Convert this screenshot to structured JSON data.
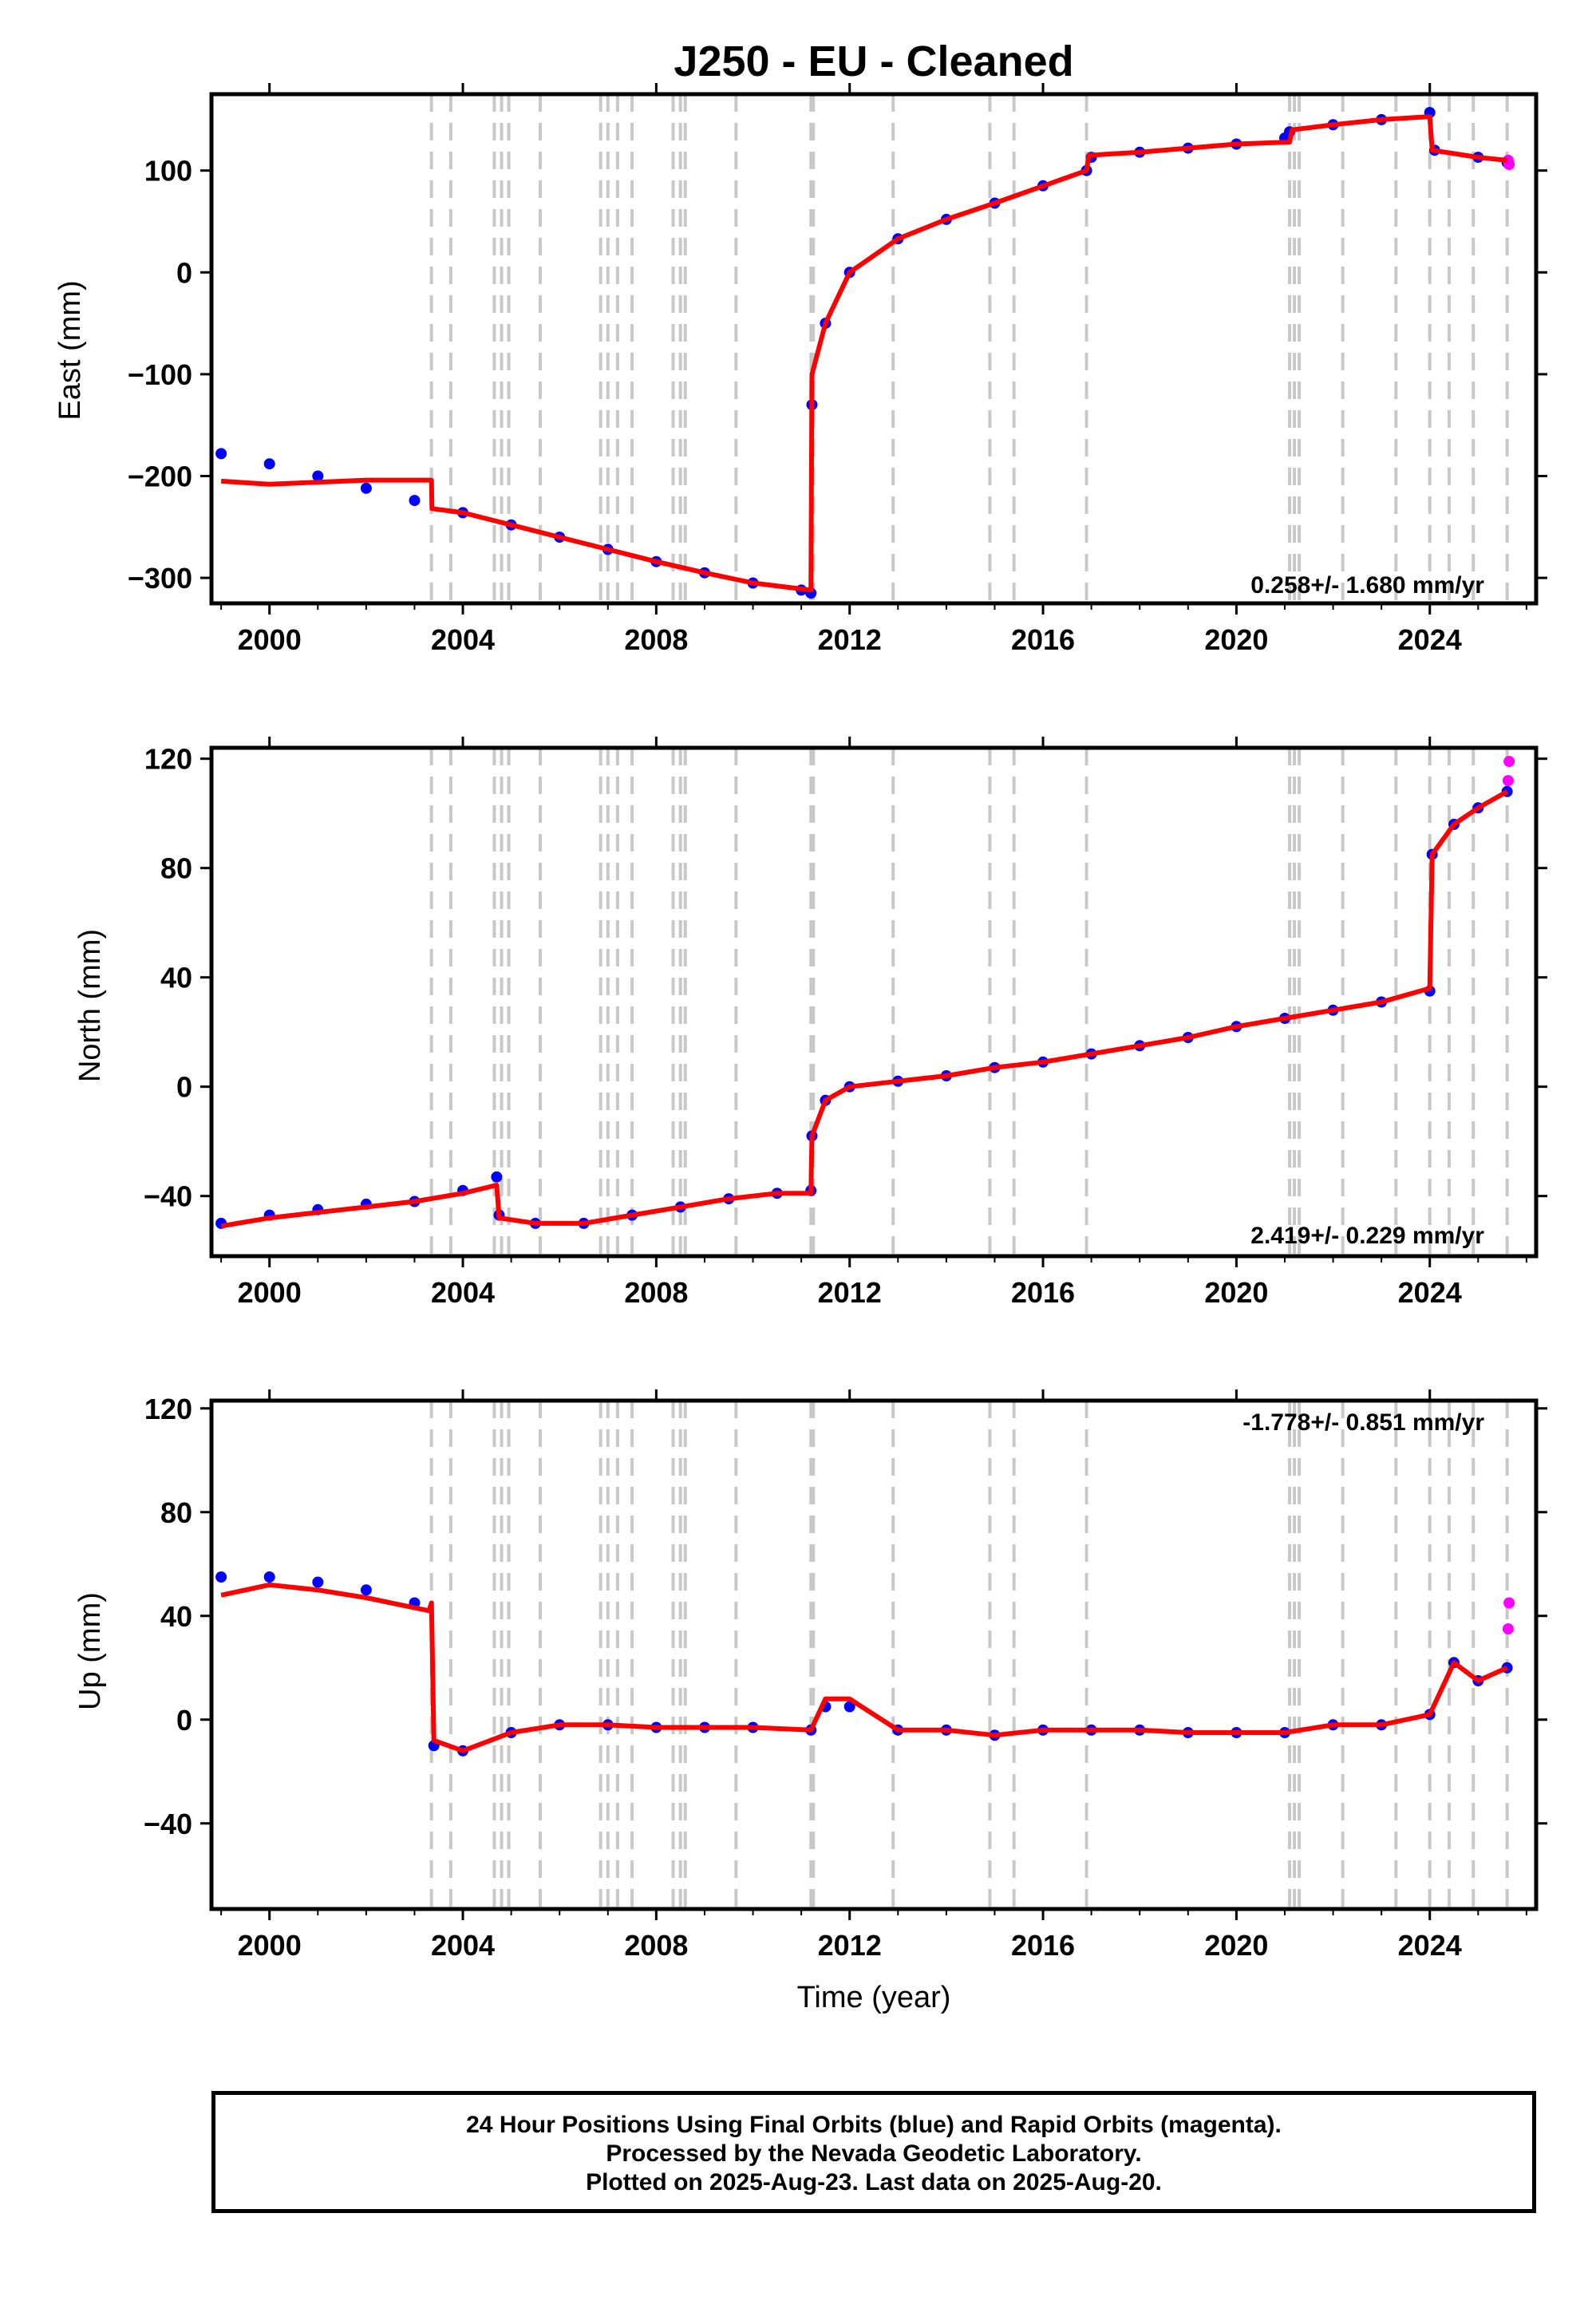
{
  "title": "J250  - EU - Cleaned",
  "xlabel": "Time (year)",
  "caption": [
    "24 Hour Positions Using Final Orbits (blue) and Rapid Orbits (magenta).",
    "Processed by the Nevada Geodetic Laboratory.",
    "Plotted on 2025-Aug-23. Last data on 2025-Aug-20."
  ],
  "colors": {
    "final_orbits": "#0000ff",
    "rapid_orbits": "#ff00ff",
    "model": "#ff0000",
    "event_lines": "#c8c8c8"
  },
  "chart_data": [
    {
      "type": "scatter",
      "panel": "East",
      "ylabel": "East (mm)",
      "rate_label": "0.258+/- 1.680 mm/yr",
      "xlim": [
        1998.8,
        2026.2
      ],
      "ylim": [
        -325,
        175
      ],
      "xticks": [
        2000,
        2004,
        2008,
        2012,
        2016,
        2020,
        2024
      ],
      "yticks": [
        -300,
        -200,
        -100,
        0,
        100
      ],
      "events": [
        2003.35,
        2003.75,
        2004.65,
        2004.8,
        2004.95,
        2005.6,
        2006.85,
        2007.0,
        2007.2,
        2007.5,
        2008.35,
        2008.5,
        2008.6,
        2009.65,
        2011.2,
        2011.25,
        2012.9,
        2014.9,
        2015.4,
        2016.9,
        2021.1,
        2021.2,
        2021.3,
        2022.2,
        2023.3,
        2024.0,
        2024.4,
        2024.9,
        2025.6
      ],
      "series": [
        {
          "name": "Final Orbits",
          "points": [
            [
              1999.0,
              -178
            ],
            [
              2000.0,
              -188
            ],
            [
              2001.0,
              -200
            ],
            [
              2002.0,
              -212
            ],
            [
              2003.0,
              -224
            ],
            [
              2004.0,
              -236
            ],
            [
              2005.0,
              -248
            ],
            [
              2006.0,
              -260
            ],
            [
              2007.0,
              -272
            ],
            [
              2008.0,
              -284
            ],
            [
              2009.0,
              -295
            ],
            [
              2010.0,
              -305
            ],
            [
              2011.0,
              -312
            ],
            [
              2011.2,
              -315
            ],
            [
              2011.22,
              -130
            ],
            [
              2011.5,
              -50
            ],
            [
              2012.0,
              0
            ],
            [
              2013.0,
              33
            ],
            [
              2014.0,
              52
            ],
            [
              2015.0,
              68
            ],
            [
              2016.0,
              85
            ],
            [
              2016.9,
              100
            ],
            [
              2017.0,
              113
            ],
            [
              2018.0,
              118
            ],
            [
              2019.0,
              122
            ],
            [
              2020.0,
              126
            ],
            [
              2021.0,
              132
            ],
            [
              2021.1,
              138
            ],
            [
              2022.0,
              145
            ],
            [
              2023.0,
              150
            ],
            [
              2024.0,
              157
            ],
            [
              2024.1,
              120
            ],
            [
              2025.0,
              113
            ],
            [
              2025.6,
              108
            ]
          ]
        },
        {
          "name": "Rapid Orbits",
          "points": [
            [
              2025.62,
              110
            ],
            [
              2025.64,
              106
            ]
          ]
        },
        {
          "name": "Model",
          "points": [
            [
              1999.0,
              -205
            ],
            [
              2000.0,
              -208
            ],
            [
              2001.0,
              -206
            ],
            [
              2002.0,
              -204
            ],
            [
              2003.35,
              -204
            ],
            [
              2003.36,
              -232
            ],
            [
              2004.0,
              -236
            ],
            [
              2005.0,
              -248
            ],
            [
              2006.0,
              -260
            ],
            [
              2007.0,
              -272
            ],
            [
              2008.0,
              -284
            ],
            [
              2009.0,
              -295
            ],
            [
              2010.0,
              -305
            ],
            [
              2011.2,
              -312
            ],
            [
              2011.22,
              -100
            ],
            [
              2011.5,
              -50
            ],
            [
              2012.0,
              0
            ],
            [
              2013.0,
              33
            ],
            [
              2014.0,
              52
            ],
            [
              2015.0,
              68
            ],
            [
              2016.9,
              100
            ],
            [
              2016.95,
              115
            ],
            [
              2018.0,
              118
            ],
            [
              2019.0,
              122
            ],
            [
              2020.0,
              126
            ],
            [
              2021.1,
              128
            ],
            [
              2021.15,
              140
            ],
            [
              2022.0,
              145
            ],
            [
              2023.0,
              150
            ],
            [
              2024.0,
              153
            ],
            [
              2024.05,
              120
            ],
            [
              2025.0,
              113
            ],
            [
              2025.6,
              110
            ]
          ]
        }
      ]
    },
    {
      "type": "scatter",
      "panel": "North",
      "ylabel": "North (mm)",
      "rate_label": "2.419+/- 0.229 mm/yr",
      "xlim": [
        1998.8,
        2026.2
      ],
      "ylim": [
        -62,
        124
      ],
      "xticks": [
        2000,
        2004,
        2008,
        2012,
        2016,
        2020,
        2024
      ],
      "yticks": [
        -40,
        0,
        40,
        80,
        120
      ],
      "events": [
        2003.35,
        2003.75,
        2004.65,
        2004.8,
        2004.95,
        2005.6,
        2006.85,
        2007.0,
        2007.2,
        2007.5,
        2008.35,
        2008.5,
        2008.6,
        2009.65,
        2011.2,
        2011.25,
        2012.9,
        2014.9,
        2015.4,
        2016.9,
        2021.1,
        2021.2,
        2021.3,
        2022.2,
        2023.3,
        2024.0,
        2024.4,
        2024.9,
        2025.6
      ],
      "series": [
        {
          "name": "Final Orbits",
          "points": [
            [
              1999.0,
              -50
            ],
            [
              2000.0,
              -47
            ],
            [
              2001.0,
              -45
            ],
            [
              2002.0,
              -43
            ],
            [
              2003.0,
              -42
            ],
            [
              2004.0,
              -38
            ],
            [
              2004.7,
              -33
            ],
            [
              2004.75,
              -47
            ],
            [
              2005.5,
              -50
            ],
            [
              2006.5,
              -50
            ],
            [
              2007.5,
              -47
            ],
            [
              2008.5,
              -44
            ],
            [
              2009.5,
              -41
            ],
            [
              2010.5,
              -39
            ],
            [
              2011.2,
              -38
            ],
            [
              2011.22,
              -18
            ],
            [
              2011.5,
              -5
            ],
            [
              2012.0,
              0
            ],
            [
              2013.0,
              2
            ],
            [
              2014.0,
              4
            ],
            [
              2015.0,
              7
            ],
            [
              2016.0,
              9
            ],
            [
              2017.0,
              12
            ],
            [
              2018.0,
              15
            ],
            [
              2019.0,
              18
            ],
            [
              2020.0,
              22
            ],
            [
              2021.0,
              25
            ],
            [
              2022.0,
              28
            ],
            [
              2023.0,
              31
            ],
            [
              2024.0,
              35
            ],
            [
              2024.05,
              85
            ],
            [
              2024.5,
              96
            ],
            [
              2025.0,
              102
            ],
            [
              2025.6,
              108
            ]
          ]
        },
        {
          "name": "Rapid Orbits",
          "points": [
            [
              2025.62,
              112
            ],
            [
              2025.64,
              119
            ]
          ]
        },
        {
          "name": "Model",
          "points": [
            [
              1999.0,
              -51
            ],
            [
              2000.0,
              -48
            ],
            [
              2001.0,
              -46
            ],
            [
              2002.0,
              -44
            ],
            [
              2003.0,
              -42
            ],
            [
              2004.0,
              -39
            ],
            [
              2004.7,
              -36
            ],
            [
              2004.75,
              -48
            ],
            [
              2005.5,
              -50
            ],
            [
              2006.5,
              -50
            ],
            [
              2007.5,
              -47
            ],
            [
              2008.5,
              -44
            ],
            [
              2009.5,
              -41
            ],
            [
              2010.5,
              -39
            ],
            [
              2011.2,
              -39
            ],
            [
              2011.22,
              -18
            ],
            [
              2011.5,
              -5
            ],
            [
              2012.0,
              0
            ],
            [
              2013.0,
              2
            ],
            [
              2014.0,
              4
            ],
            [
              2015.0,
              7
            ],
            [
              2016.0,
              9
            ],
            [
              2017.0,
              12
            ],
            [
              2018.0,
              15
            ],
            [
              2019.0,
              18
            ],
            [
              2020.0,
              22
            ],
            [
              2021.0,
              25
            ],
            [
              2022.0,
              28
            ],
            [
              2023.0,
              31
            ],
            [
              2024.0,
              36
            ],
            [
              2024.05,
              85
            ],
            [
              2024.5,
              96
            ],
            [
              2025.0,
              102
            ],
            [
              2025.6,
              108
            ]
          ]
        }
      ]
    },
    {
      "type": "scatter",
      "panel": "Up",
      "ylabel": "Up (mm)",
      "rate_label": "-1.778+/- 0.851 mm/yr",
      "xlim": [
        1998.8,
        2026.2
      ],
      "ylim": [
        -73,
        123
      ],
      "xticks": [
        2000,
        2004,
        2008,
        2012,
        2016,
        2020,
        2024
      ],
      "yticks": [
        -40,
        0,
        40,
        80,
        120
      ],
      "events": [
        2003.35,
        2003.75,
        2004.65,
        2004.8,
        2004.95,
        2005.6,
        2006.85,
        2007.0,
        2007.2,
        2007.5,
        2008.35,
        2008.5,
        2008.6,
        2009.65,
        2011.2,
        2011.25,
        2012.9,
        2014.9,
        2015.4,
        2016.9,
        2021.1,
        2021.2,
        2021.3,
        2022.2,
        2023.3,
        2024.0,
        2024.4,
        2024.9,
        2025.6
      ],
      "series": [
        {
          "name": "Final Orbits",
          "points": [
            [
              1999.0,
              55
            ],
            [
              2000.0,
              55
            ],
            [
              2001.0,
              53
            ],
            [
              2002.0,
              50
            ],
            [
              2003.0,
              45
            ],
            [
              2003.4,
              -10
            ],
            [
              2004.0,
              -12
            ],
            [
              2005.0,
              -5
            ],
            [
              2006.0,
              -2
            ],
            [
              2007.0,
              -2
            ],
            [
              2008.0,
              -3
            ],
            [
              2009.0,
              -3
            ],
            [
              2010.0,
              -3
            ],
            [
              2011.2,
              -4
            ],
            [
              2011.5,
              5
            ],
            [
              2012.0,
              5
            ],
            [
              2013.0,
              -4
            ],
            [
              2014.0,
              -4
            ],
            [
              2015.0,
              -6
            ],
            [
              2016.0,
              -4
            ],
            [
              2017.0,
              -4
            ],
            [
              2018.0,
              -4
            ],
            [
              2019.0,
              -5
            ],
            [
              2020.0,
              -5
            ],
            [
              2021.0,
              -5
            ],
            [
              2022.0,
              -2
            ],
            [
              2023.0,
              -2
            ],
            [
              2024.0,
              2
            ],
            [
              2024.5,
              22
            ],
            [
              2025.0,
              15
            ],
            [
              2025.6,
              20
            ]
          ]
        },
        {
          "name": "Rapid Orbits",
          "points": [
            [
              2025.62,
              35
            ],
            [
              2025.64,
              45
            ]
          ]
        },
        {
          "name": "Model",
          "points": [
            [
              1999.0,
              48
            ],
            [
              2000.0,
              52
            ],
            [
              2001.0,
              50
            ],
            [
              2002.0,
              47
            ],
            [
              2003.3,
              42
            ],
            [
              2003.35,
              45
            ],
            [
              2003.4,
              -8
            ],
            [
              2004.0,
              -12
            ],
            [
              2005.0,
              -5
            ],
            [
              2006.0,
              -2
            ],
            [
              2007.0,
              -2
            ],
            [
              2008.0,
              -3
            ],
            [
              2009.0,
              -3
            ],
            [
              2010.0,
              -3
            ],
            [
              2011.2,
              -4
            ],
            [
              2011.5,
              8
            ],
            [
              2012.0,
              8
            ],
            [
              2013.0,
              -4
            ],
            [
              2014.0,
              -4
            ],
            [
              2015.0,
              -6
            ],
            [
              2016.0,
              -4
            ],
            [
              2017.0,
              -4
            ],
            [
              2018.0,
              -4
            ],
            [
              2019.0,
              -5
            ],
            [
              2020.0,
              -5
            ],
            [
              2021.0,
              -5
            ],
            [
              2022.0,
              -2
            ],
            [
              2023.0,
              -2
            ],
            [
              2024.0,
              2
            ],
            [
              2024.5,
              22
            ],
            [
              2025.0,
              15
            ],
            [
              2025.6,
              20
            ]
          ]
        }
      ]
    }
  ]
}
